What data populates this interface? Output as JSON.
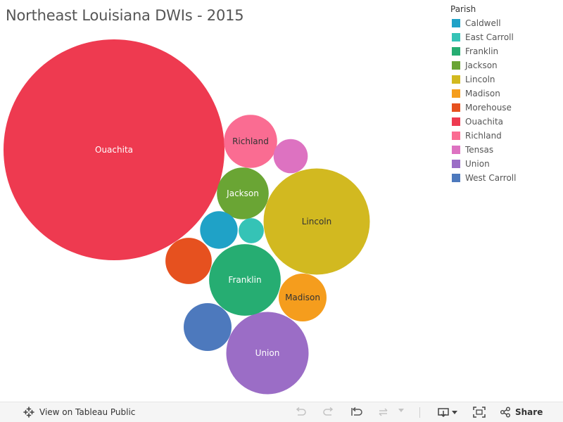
{
  "title": "Northeast Louisiana DWIs - 2015",
  "legend": {
    "title": "Parish",
    "items": [
      {
        "label": "Caldwell",
        "color": "#1fa2c7"
      },
      {
        "label": "East Carroll",
        "color": "#35c3b6"
      },
      {
        "label": "Franklin",
        "color": "#26ad72"
      },
      {
        "label": "Jackson",
        "color": "#6aa534"
      },
      {
        "label": "Lincoln",
        "color": "#d2b920"
      },
      {
        "label": "Madison",
        "color": "#f59d1d"
      },
      {
        "label": "Morehouse",
        "color": "#e6511f"
      },
      {
        "label": "Ouachita",
        "color": "#ee3a50"
      },
      {
        "label": "Richland",
        "color": "#fa6c92"
      },
      {
        "label": "Tensas",
        "color": "#dd72c1"
      },
      {
        "label": "Union",
        "color": "#9b6dc6"
      },
      {
        "label": "West Carroll",
        "color": "#4d79bd"
      }
    ]
  },
  "chart_data": {
    "type": "bubble",
    "title": "Northeast Louisiana DWIs - 2015",
    "size_measure": "DWIs",
    "series": [
      {
        "name": "Ouachita",
        "value": 100,
        "label": "Ouachita",
        "color": "#ee3a50",
        "label_color": "#ffffff"
      },
      {
        "name": "Lincoln",
        "value": 23.1,
        "label": "Lincoln",
        "color": "#d2b920",
        "label_color": "#333333"
      },
      {
        "name": "Union",
        "value": 13.9,
        "label": "Union",
        "color": "#9b6dc6",
        "label_color": "#ffffff"
      },
      {
        "name": "Franklin",
        "value": 10.5,
        "label": "Franklin",
        "color": "#26ad72",
        "label_color": "#ffffff"
      },
      {
        "name": "Jackson",
        "value": 5.5,
        "label": "Jackson",
        "color": "#6aa534",
        "label_color": "#ffffff"
      },
      {
        "name": "Richland",
        "value": 5.8,
        "label": "Richland",
        "color": "#fa6c92",
        "label_color": "#333333"
      },
      {
        "name": "Madison",
        "value": 4.7,
        "label": "Madison",
        "color": "#f59d1d",
        "label_color": "#333333"
      },
      {
        "name": "West Carroll",
        "value": 4.7,
        "label": "",
        "color": "#4d79bd",
        "label_color": "#ffffff"
      },
      {
        "name": "Morehouse",
        "value": 4.4,
        "label": "",
        "color": "#e6511f",
        "label_color": "#ffffff"
      },
      {
        "name": "Caldwell",
        "value": 2.9,
        "label": "",
        "color": "#1fa2c7",
        "label_color": "#ffffff"
      },
      {
        "name": "Tensas",
        "value": 2.4,
        "label": "",
        "color": "#dd72c1",
        "label_color": "#ffffff"
      },
      {
        "name": "East Carroll",
        "value": 1.3,
        "label": "",
        "color": "#35c3b6",
        "label_color": "#ffffff"
      }
    ]
  },
  "footer": {
    "view_label": "View on Tableau Public",
    "share_label": "Share"
  }
}
